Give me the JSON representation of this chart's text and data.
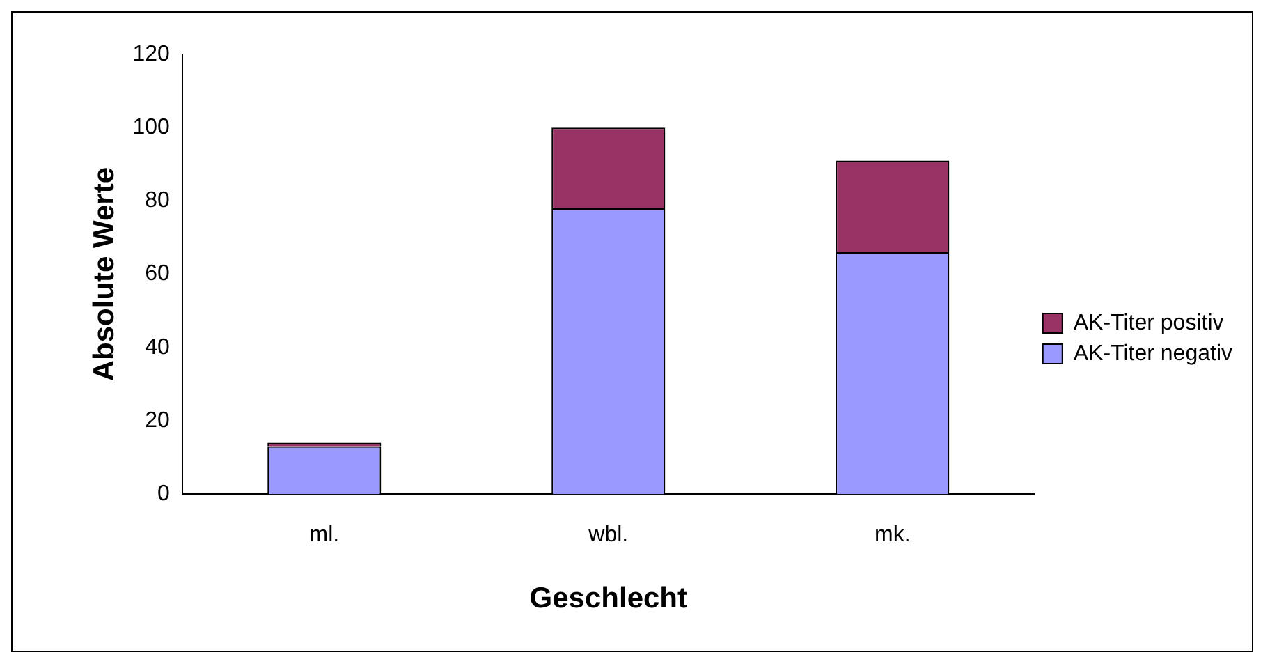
{
  "chart_data": {
    "type": "bar",
    "stacked": true,
    "xlabel": "Geschlecht",
    "ylabel": "Absolute Werte",
    "categories": [
      "ml.",
      "wbl.",
      "mk."
    ],
    "series": [
      {
        "name": "AK-Titer negativ",
        "color": "#9999ff",
        "values": [
          13,
          78,
          66
        ]
      },
      {
        "name": "AK-Titer positiv",
        "color": "#993366",
        "values": [
          1,
          22,
          25
        ]
      }
    ],
    "ylim": [
      0,
      120
    ],
    "yticks": [
      0,
      20,
      40,
      60,
      80,
      100,
      120
    ],
    "grid": false,
    "legend": "right"
  }
}
